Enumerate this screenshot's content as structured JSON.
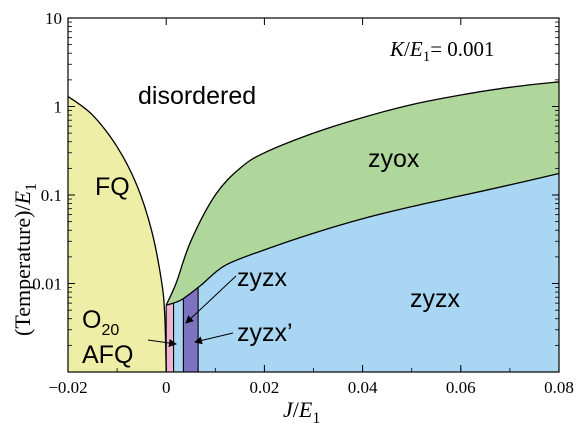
{
  "chart_data": {
    "type": "area",
    "title": "",
    "xlabel": {
      "italic": "J",
      "mid": "/",
      "italic2": "E",
      "sub": "1"
    },
    "ylabel": {
      "pre": "(Temperature)/",
      "italic": "E",
      "sub": "1"
    },
    "xlim": [
      -0.02,
      0.08
    ],
    "ylim": [
      0.001,
      10
    ],
    "yscale": "log",
    "grid": false,
    "x_ticks": [
      {
        "value": -0.02,
        "label": "−0.02"
      },
      {
        "value": 0.0,
        "label": "0"
      },
      {
        "value": 0.02,
        "label": "0.02"
      },
      {
        "value": 0.04,
        "label": "0.04"
      },
      {
        "value": 0.06,
        "label": "0.06"
      },
      {
        "value": 0.08,
        "label": "0.08"
      }
    ],
    "y_ticks": [
      {
        "value": 0.01,
        "label": "0.01"
      },
      {
        "value": 0.1,
        "label": "0.1"
      },
      {
        "value": 1,
        "label": "1"
      },
      {
        "value": 10,
        "label": "10"
      }
    ],
    "annotation": {
      "italic": "K",
      "mid": "/",
      "italic2": "E",
      "sub": "1",
      "rest": "= 0.001"
    },
    "regions": [
      {
        "name": "FQ",
        "color": "#eeeea6",
        "boundary": [
          [
            -0.02,
            1.3
          ],
          [
            -0.015,
            0.8
          ],
          [
            -0.01,
            0.35
          ],
          [
            -0.006,
            0.13
          ],
          [
            -0.003,
            0.04
          ],
          [
            -0.001,
            0.011
          ],
          [
            -0.0003,
            0.0045
          ],
          [
            0.0,
            0.001
          ]
        ]
      },
      {
        "name": "zyox",
        "color": "#afd69b",
        "boundary": [
          [
            0.0,
            0.0057
          ],
          [
            0.003,
            0.0065
          ],
          [
            0.007,
            0.0095
          ],
          [
            0.012,
            0.016
          ],
          [
            0.02,
            0.024
          ],
          [
            0.03,
            0.037
          ],
          [
            0.04,
            0.054
          ],
          [
            0.05,
            0.074
          ],
          [
            0.06,
            0.098
          ],
          [
            0.07,
            0.13
          ],
          [
            0.08,
            0.175
          ]
        ],
        "upper": [
          [
            0.0,
            0.0057
          ],
          [
            0.002,
            0.01
          ],
          [
            0.005,
            0.03
          ],
          [
            0.01,
            0.1
          ],
          [
            0.015,
            0.2
          ],
          [
            0.02,
            0.3
          ],
          [
            0.03,
            0.5
          ],
          [
            0.04,
            0.75
          ],
          [
            0.05,
            1.05
          ],
          [
            0.06,
            1.35
          ],
          [
            0.07,
            1.65
          ],
          [
            0.08,
            1.9
          ]
        ]
      },
      {
        "name": "zyzx",
        "color": "#a9d6f2"
      },
      {
        "name": "zyzx’",
        "color": "#7e73c0",
        "x_range": [
          0.0035,
          0.0065
        ]
      },
      {
        "name": "O20 AFQ",
        "color": "#ebb4d0",
        "x_range": [
          0.0,
          0.0015
        ]
      }
    ],
    "labels": {
      "disordered": "disordered",
      "FQ": "FQ",
      "zyox": "zyox",
      "zyzx_main": "zyzx",
      "zyzx_arrow": "zyzx",
      "zyzx_prime": "zyzx’",
      "O20": "O",
      "O20_sub": "20",
      "AFQ": "AFQ"
    }
  }
}
